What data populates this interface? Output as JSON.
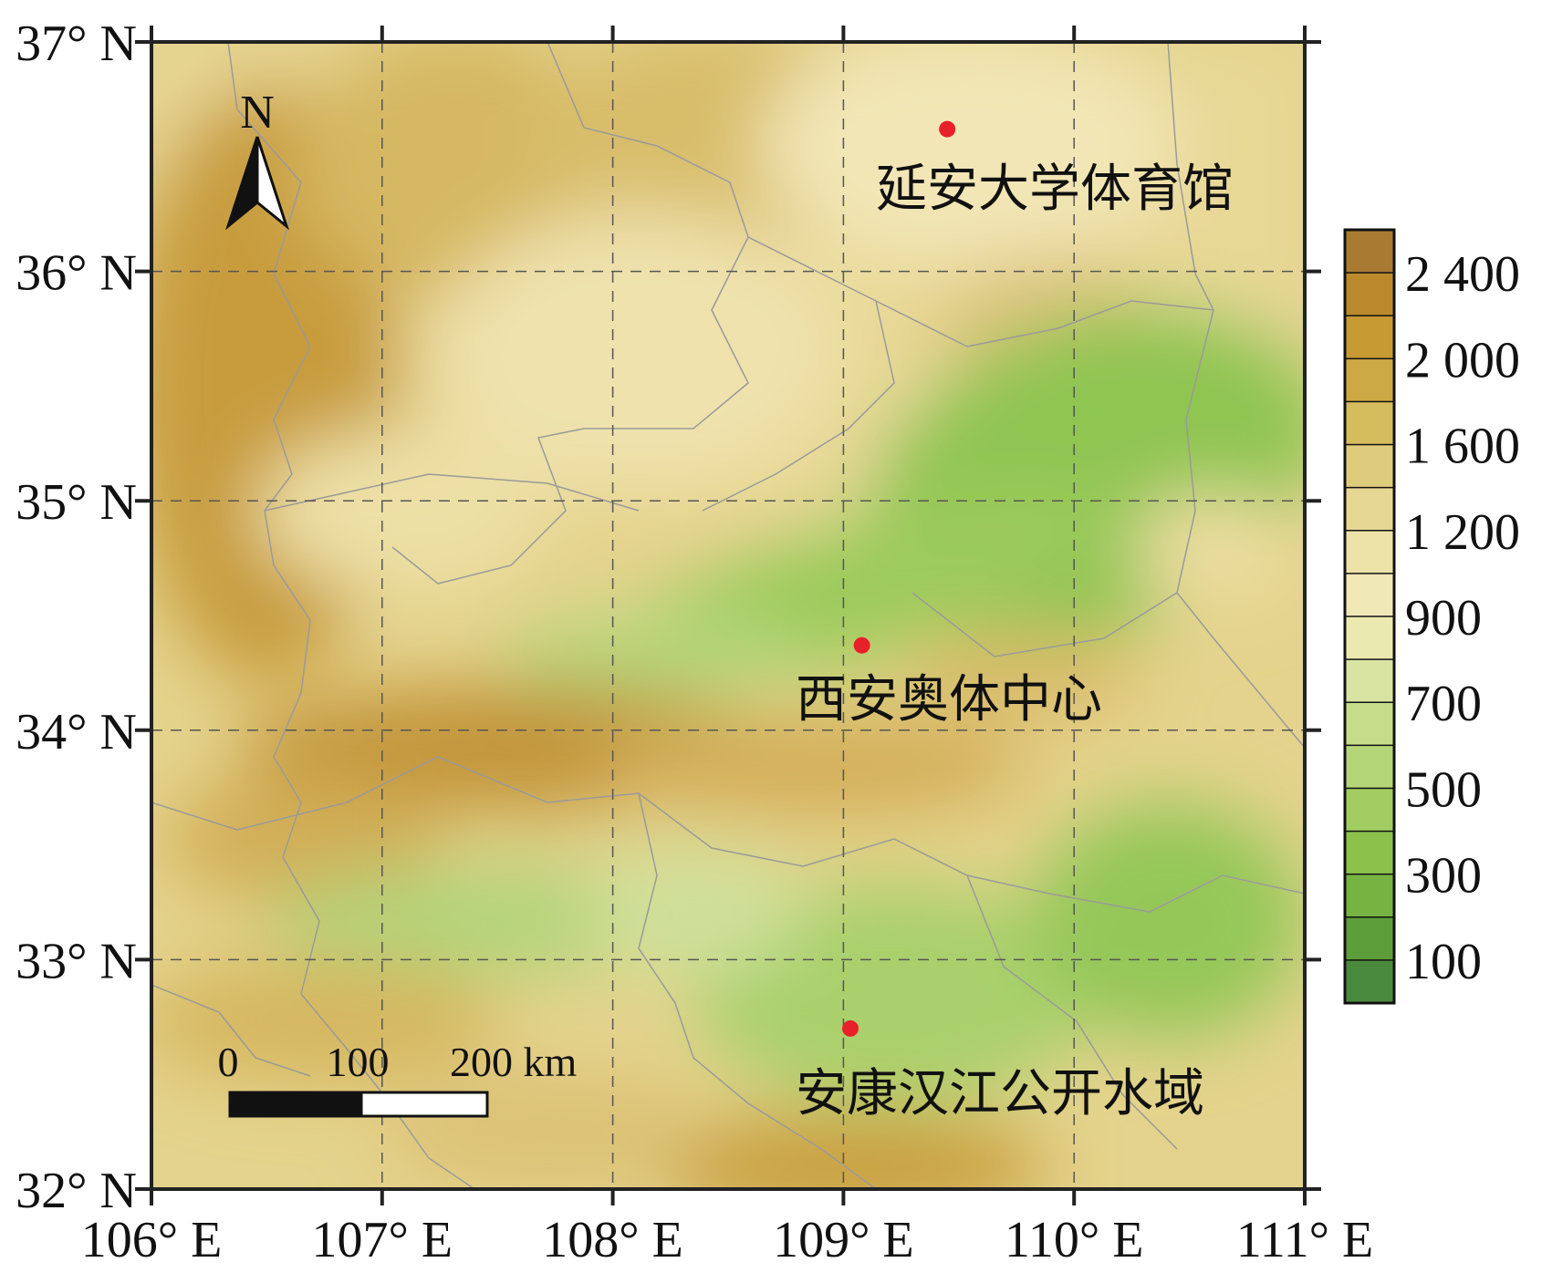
{
  "map": {
    "lat_axis": {
      "range": [
        32,
        37
      ],
      "ticks": [
        37,
        36,
        35,
        34,
        33,
        32
      ],
      "labels": [
        "37° N",
        "36° N",
        "35° N",
        "34° N",
        "33° N",
        "32° N"
      ]
    },
    "lon_axis": {
      "range": [
        106,
        111
      ],
      "ticks": [
        106,
        107,
        108,
        109,
        110,
        111
      ],
      "labels": [
        "106° E",
        "107° E",
        "108° E",
        "109° E",
        "110° E",
        "111° E"
      ]
    },
    "grid": true,
    "north_arrow": {
      "label": "N",
      "icon": "north-arrow-icon"
    },
    "scale_bar": {
      "labels": [
        "0",
        "100",
        "200 km"
      ]
    },
    "sites": [
      {
        "name": "延安大学体育馆",
        "lon": 109.45,
        "lat": 36.62,
        "marker_color": "#e8202a"
      },
      {
        "name": "西安奥体中心",
        "lon": 109.08,
        "lat": 34.37,
        "marker_color": "#e8202a"
      },
      {
        "name": "安康汉江公开水域",
        "lon": 109.03,
        "lat": 32.7,
        "marker_color": "#e8202a"
      }
    ],
    "legend": {
      "labels": [
        "2 400",
        "2 000",
        "1 600",
        "1 200",
        "900",
        "700",
        "500",
        "300",
        "100"
      ],
      "colors": [
        "#a87a32",
        "#bb8a2c",
        "#c79a33",
        "#cca944",
        "#d5bc5c",
        "#dfcb7c",
        "#e7d795",
        "#ede2a8",
        "#f1e8b8",
        "#eaeab0",
        "#d9e4a2",
        "#c7dc8b",
        "#b5d579",
        "#a1cd62",
        "#8cc24c",
        "#76b340",
        "#5e9e3a",
        "#4a8a3c"
      ]
    }
  }
}
